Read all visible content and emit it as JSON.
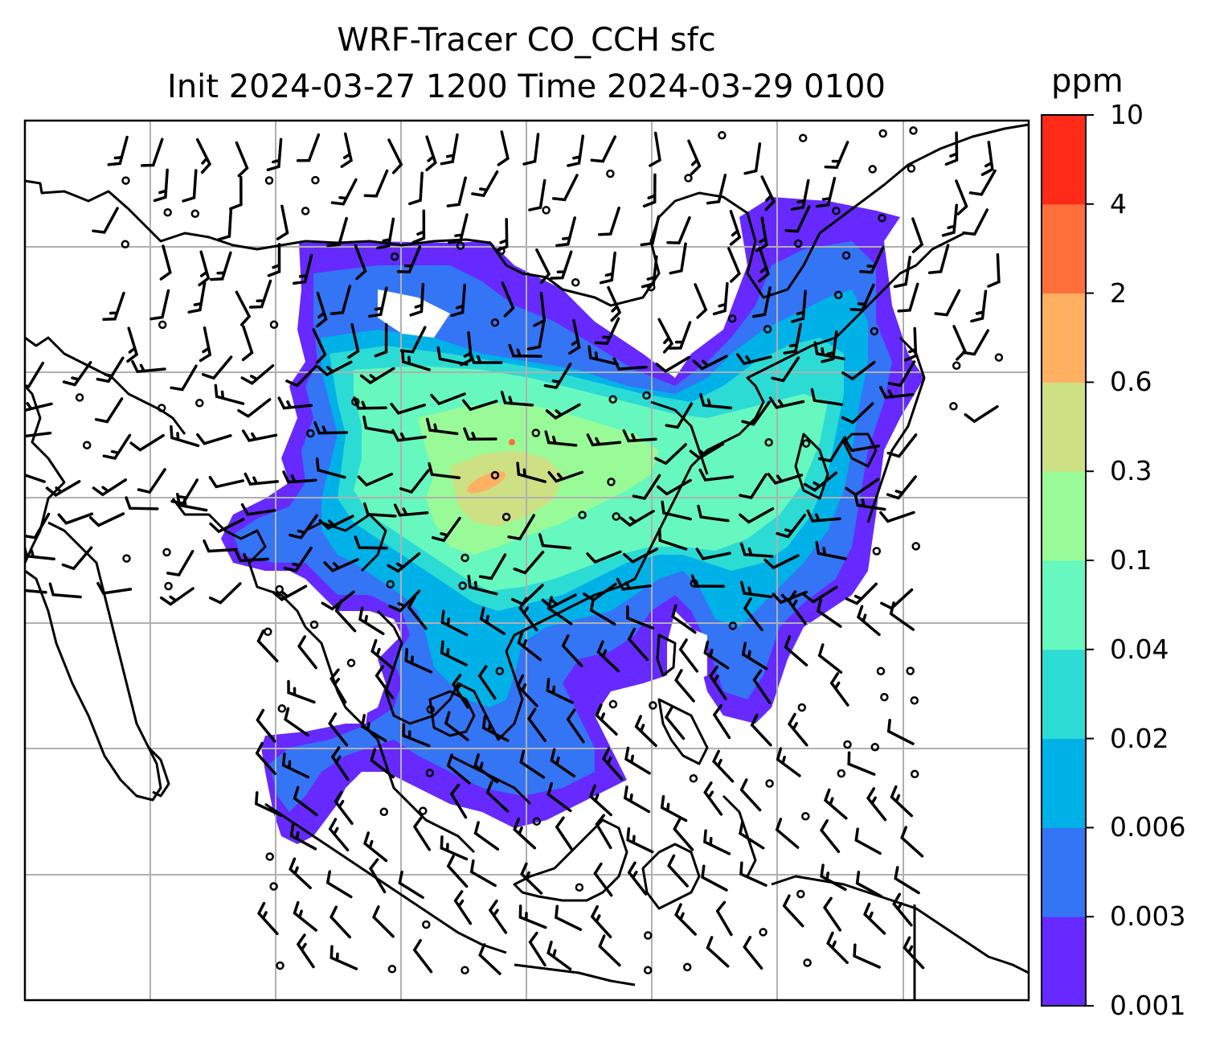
{
  "title": {
    "line1": "WRF-Tracer CO_CCH sfc",
    "line2": "Init 2024-03-27 1200 Time 2024-03-29 0100"
  },
  "colorbar": {
    "unit": "ppm",
    "levels": [
      "0.001",
      "0.003",
      "0.006",
      "0.02",
      "0.04",
      "0.1",
      "0.3",
      "0.6",
      "2",
      "4",
      "10"
    ],
    "colors": [
      "#6629ff",
      "#3375f5",
      "#00b1e8",
      "#2cdbd4",
      "#66f8be",
      "#99fb97",
      "#cde084",
      "#ffb060",
      "#ff6f39",
      "#ff2a17"
    ]
  },
  "map": {
    "projection": "lambert-conformal",
    "region": "East Asia / Southeast Asia",
    "gridlines": true,
    "coastlines": true,
    "wind_barbs": true,
    "fill_variable": "CO_CCH surface tracer"
  },
  "chart_data": {
    "type": "heatmap",
    "title": "WRF-Tracer CO_CCH sfc Init 2024-03-27 1200 Time 2024-03-29 0100",
    "colorbar_label": "ppm",
    "levels": [
      0.001,
      0.003,
      0.006,
      0.02,
      0.04,
      0.1,
      0.3,
      0.6,
      2,
      4,
      10
    ],
    "colors": [
      "#6629ff",
      "#3375f5",
      "#00b1e8",
      "#2cdbd4",
      "#66f8be",
      "#99fb97",
      "#cde084",
      "#ffb060",
      "#ff6f39",
      "#ff2a17"
    ],
    "max_visible_level": 2
  }
}
